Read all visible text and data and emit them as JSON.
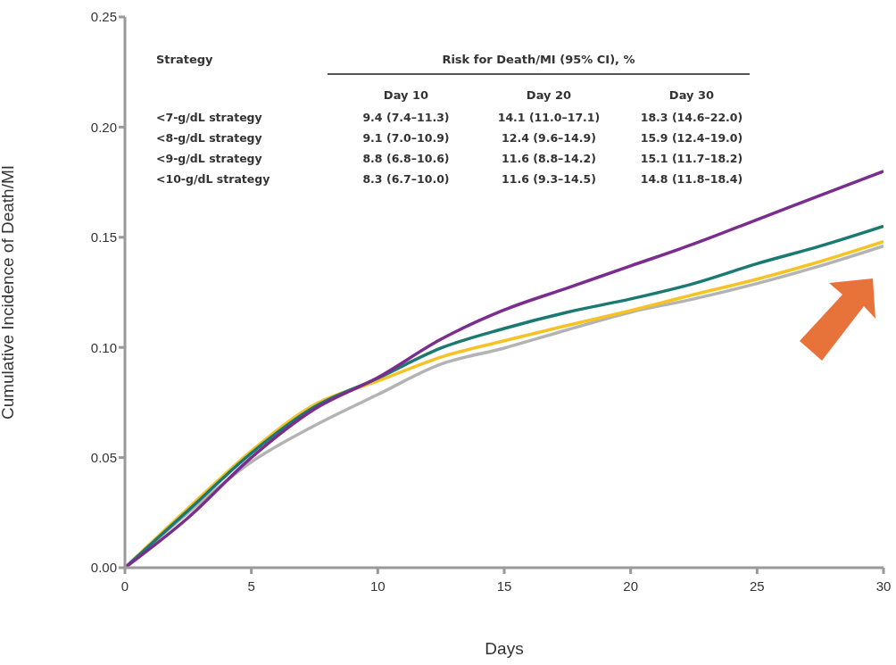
{
  "chart_data": {
    "type": "line",
    "ylabel": "Cumulative Incidence of Death/MI",
    "xlabel": "Days",
    "x": [
      0,
      2.5,
      5,
      7.5,
      10,
      12.5,
      15,
      17.5,
      20,
      22.5,
      25,
      27.5,
      30
    ],
    "series": [
      {
        "color": "#b3b3b3",
        "values": [
          0,
          0.025,
          0.048,
          0.0645,
          0.0786,
          0.0924,
          0.0997,
          0.108,
          0.116,
          0.122,
          0.129,
          0.137,
          0.146
        ]
      },
      {
        "color": "#f6c224",
        "values": [
          0,
          0.027,
          0.053,
          0.074,
          0.0847,
          0.0956,
          0.103,
          0.11,
          0.1167,
          0.124,
          0.131,
          0.139,
          0.148
        ]
      },
      {
        "color": "#1a7a72",
        "values": [
          0,
          0.026,
          0.052,
          0.073,
          0.086,
          0.0997,
          0.1086,
          0.116,
          0.122,
          0.129,
          0.138,
          0.146,
          0.155
        ]
      },
      {
        "color": "#7b2d8e",
        "values": [
          0,
          0.0227,
          0.05,
          0.072,
          0.0863,
          0.1037,
          0.117,
          0.127,
          0.137,
          0.147,
          0.158,
          0.169,
          0.18
        ]
      }
    ],
    "xlim": [
      0,
      30
    ],
    "xticks": [
      0,
      5,
      10,
      15,
      20,
      25,
      30
    ],
    "ylim": [
      0,
      0.25
    ],
    "yticks": [
      {
        "value": 0,
        "label": "0.00"
      },
      {
        "value": 0.05,
        "label": "0.05"
      },
      {
        "value": 0.1,
        "label": "0.10"
      },
      {
        "value": 0.15,
        "label": "0.15"
      },
      {
        "value": 0.2,
        "label": "0.20"
      },
      {
        "value": 0.25,
        "label": "0.25"
      }
    ],
    "grid": false,
    "legend": false,
    "marker": "none",
    "line_style": "solid",
    "annotations": [
      "Strategy",
      "Risk for Death/MI (95% CI), %",
      "Day 10",
      "Day 20",
      "Day 30",
      "<7-g/dL strategy",
      "9.4 (7.4–11.3)",
      "14.1 (11.0–17.1)",
      "18.3 (14.6–22.0)",
      "<8-g/dL strategy",
      "9.1 (7.0–10.9)",
      "12.4 (9.6–14.9)",
      "15.9 (12.4–19.0)",
      "<9-g/dL strategy",
      "8.8 (6.8–10.6)",
      "11.6 (8.8–14.2)",
      "15.1 (11.7–18.2)",
      "<10-g/dL strategy",
      "8.3 (6.7–10.0)",
      "11.6 (9.3–14.5)",
      "14.8 (11.8–18.4)"
    ]
  }
}
